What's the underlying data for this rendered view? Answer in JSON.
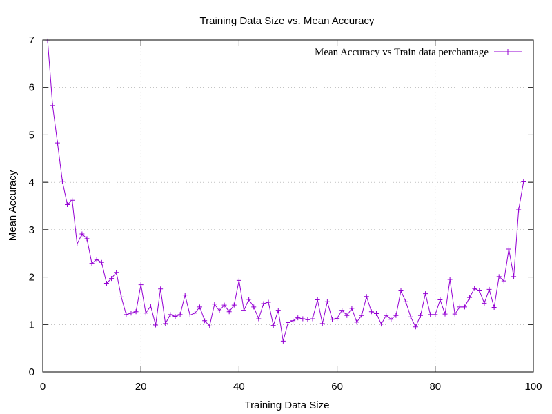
{
  "chart_data": {
    "type": "line",
    "title": "Training Data Size vs. Mean Accuracy",
    "xlabel": "Training Data Size",
    "ylabel": "Mean Accuracy",
    "xlim": [
      0,
      100
    ],
    "ylim": [
      0,
      7
    ],
    "xticks": [
      0,
      20,
      40,
      60,
      80,
      100
    ],
    "yticks": [
      0,
      1,
      2,
      3,
      4,
      5,
      6,
      7
    ],
    "grid": true,
    "legend_position": "top-right",
    "series": [
      {
        "name": "Mean Accuracy vs Train data perchantage",
        "color": "#9400d3",
        "marker": "plus",
        "x": [
          1,
          2,
          3,
          4,
          5,
          6,
          7,
          8,
          9,
          10,
          11,
          12,
          13,
          14,
          15,
          16,
          17,
          18,
          19,
          20,
          21,
          22,
          23,
          24,
          25,
          26,
          27,
          28,
          29,
          30,
          31,
          32,
          33,
          34,
          35,
          36,
          37,
          38,
          39,
          40,
          41,
          42,
          43,
          44,
          45,
          46,
          47,
          48,
          49,
          50,
          51,
          52,
          53,
          54,
          55,
          56,
          57,
          58,
          59,
          60,
          61,
          62,
          63,
          64,
          65,
          66,
          67,
          68,
          69,
          70,
          71,
          72,
          73,
          74,
          75,
          76,
          77,
          78,
          79,
          80,
          81,
          82,
          83,
          84,
          85,
          86,
          87,
          88,
          89,
          90,
          91,
          92,
          93,
          94,
          95,
          96,
          97,
          98
        ],
        "y": [
          6.98,
          5.62,
          4.83,
          4.02,
          3.53,
          3.62,
          2.7,
          2.91,
          2.81,
          2.29,
          2.37,
          2.31,
          1.87,
          1.97,
          2.1,
          1.58,
          1.21,
          1.24,
          1.27,
          1.84,
          1.24,
          1.39,
          0.99,
          1.75,
          1.02,
          1.21,
          1.17,
          1.21,
          1.62,
          1.2,
          1.24,
          1.37,
          1.08,
          0.97,
          1.43,
          1.29,
          1.41,
          1.27,
          1.41,
          1.93,
          1.3,
          1.53,
          1.37,
          1.12,
          1.44,
          1.47,
          0.98,
          1.3,
          0.65,
          1.04,
          1.08,
          1.14,
          1.12,
          1.1,
          1.12,
          1.52,
          1.02,
          1.48,
          1.11,
          1.13,
          1.3,
          1.19,
          1.34,
          1.05,
          1.19,
          1.59,
          1.27,
          1.23,
          1.01,
          1.19,
          1.11,
          1.19,
          1.71,
          1.48,
          1.16,
          0.95,
          1.19,
          1.65,
          1.21,
          1.21,
          1.52,
          1.22,
          1.95,
          1.22,
          1.37,
          1.37,
          1.57,
          1.76,
          1.71,
          1.45,
          1.74,
          1.36,
          2.01,
          1.92,
          2.59,
          2.01,
          3.42,
          4.01
        ]
      }
    ]
  }
}
